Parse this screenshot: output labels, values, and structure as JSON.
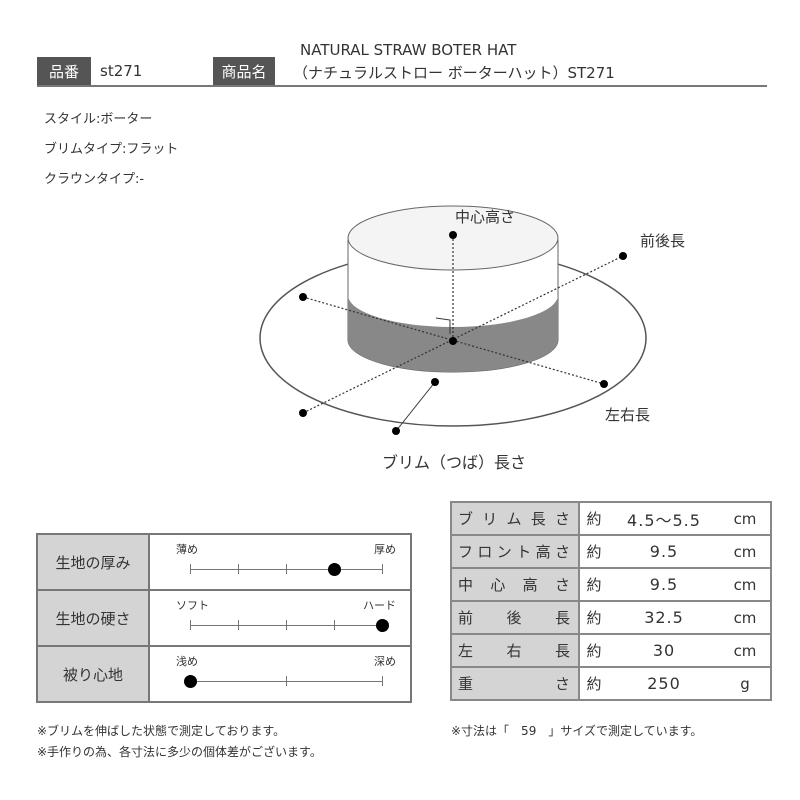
{
  "header": {
    "item_no_label": "品番",
    "item_no": "st271",
    "name_label": "商品名",
    "name_line1": "NATURAL STRAW BOTER HAT",
    "name_line2": "（ナチュラルストロー ボーターハット）ST271"
  },
  "specs": [
    "スタイル:ボーター",
    "ブリムタイプ:フラット",
    "クラウンタイプ:-"
  ],
  "diagram": {
    "center_height": "中心高さ",
    "front_back": "前後長",
    "left_right": "左右長",
    "brim": "ブリム（つば）長さ"
  },
  "feel": [
    {
      "label": "生地の厚み",
      "left": "薄め",
      "right": "厚め",
      "steps": 5,
      "value": 4
    },
    {
      "label": "生地の硬さ",
      "left": "ソフト",
      "right": "ハード",
      "steps": 5,
      "value": 5
    },
    {
      "label": "被り心地",
      "left": "浅め",
      "right": "深め",
      "steps": 3,
      "value": 1
    }
  ],
  "measurements": [
    {
      "label": "ブリム長さ",
      "approx": "約",
      "value": "4.5～5.5",
      "unit": "cm"
    },
    {
      "label": "フロント高さ",
      "approx": "約",
      "value": "9.5",
      "unit": "cm"
    },
    {
      "label": "中心高さ",
      "approx": "約",
      "value": "9.5",
      "unit": "cm"
    },
    {
      "label": "前後長",
      "approx": "約",
      "value": "32.5",
      "unit": "cm"
    },
    {
      "label": "左右長",
      "approx": "約",
      "value": "30",
      "unit": "cm"
    },
    {
      "label": "重さ",
      "approx": "約",
      "value": "250",
      "unit": "g"
    }
  ],
  "notes_left": [
    "※ブリムを伸ばした状態で測定しております。",
    "※手作りの為、各寸法に多少の個体差がございます。"
  ],
  "note_right": "※寸法は「　59　」サイズで測定しています。"
}
